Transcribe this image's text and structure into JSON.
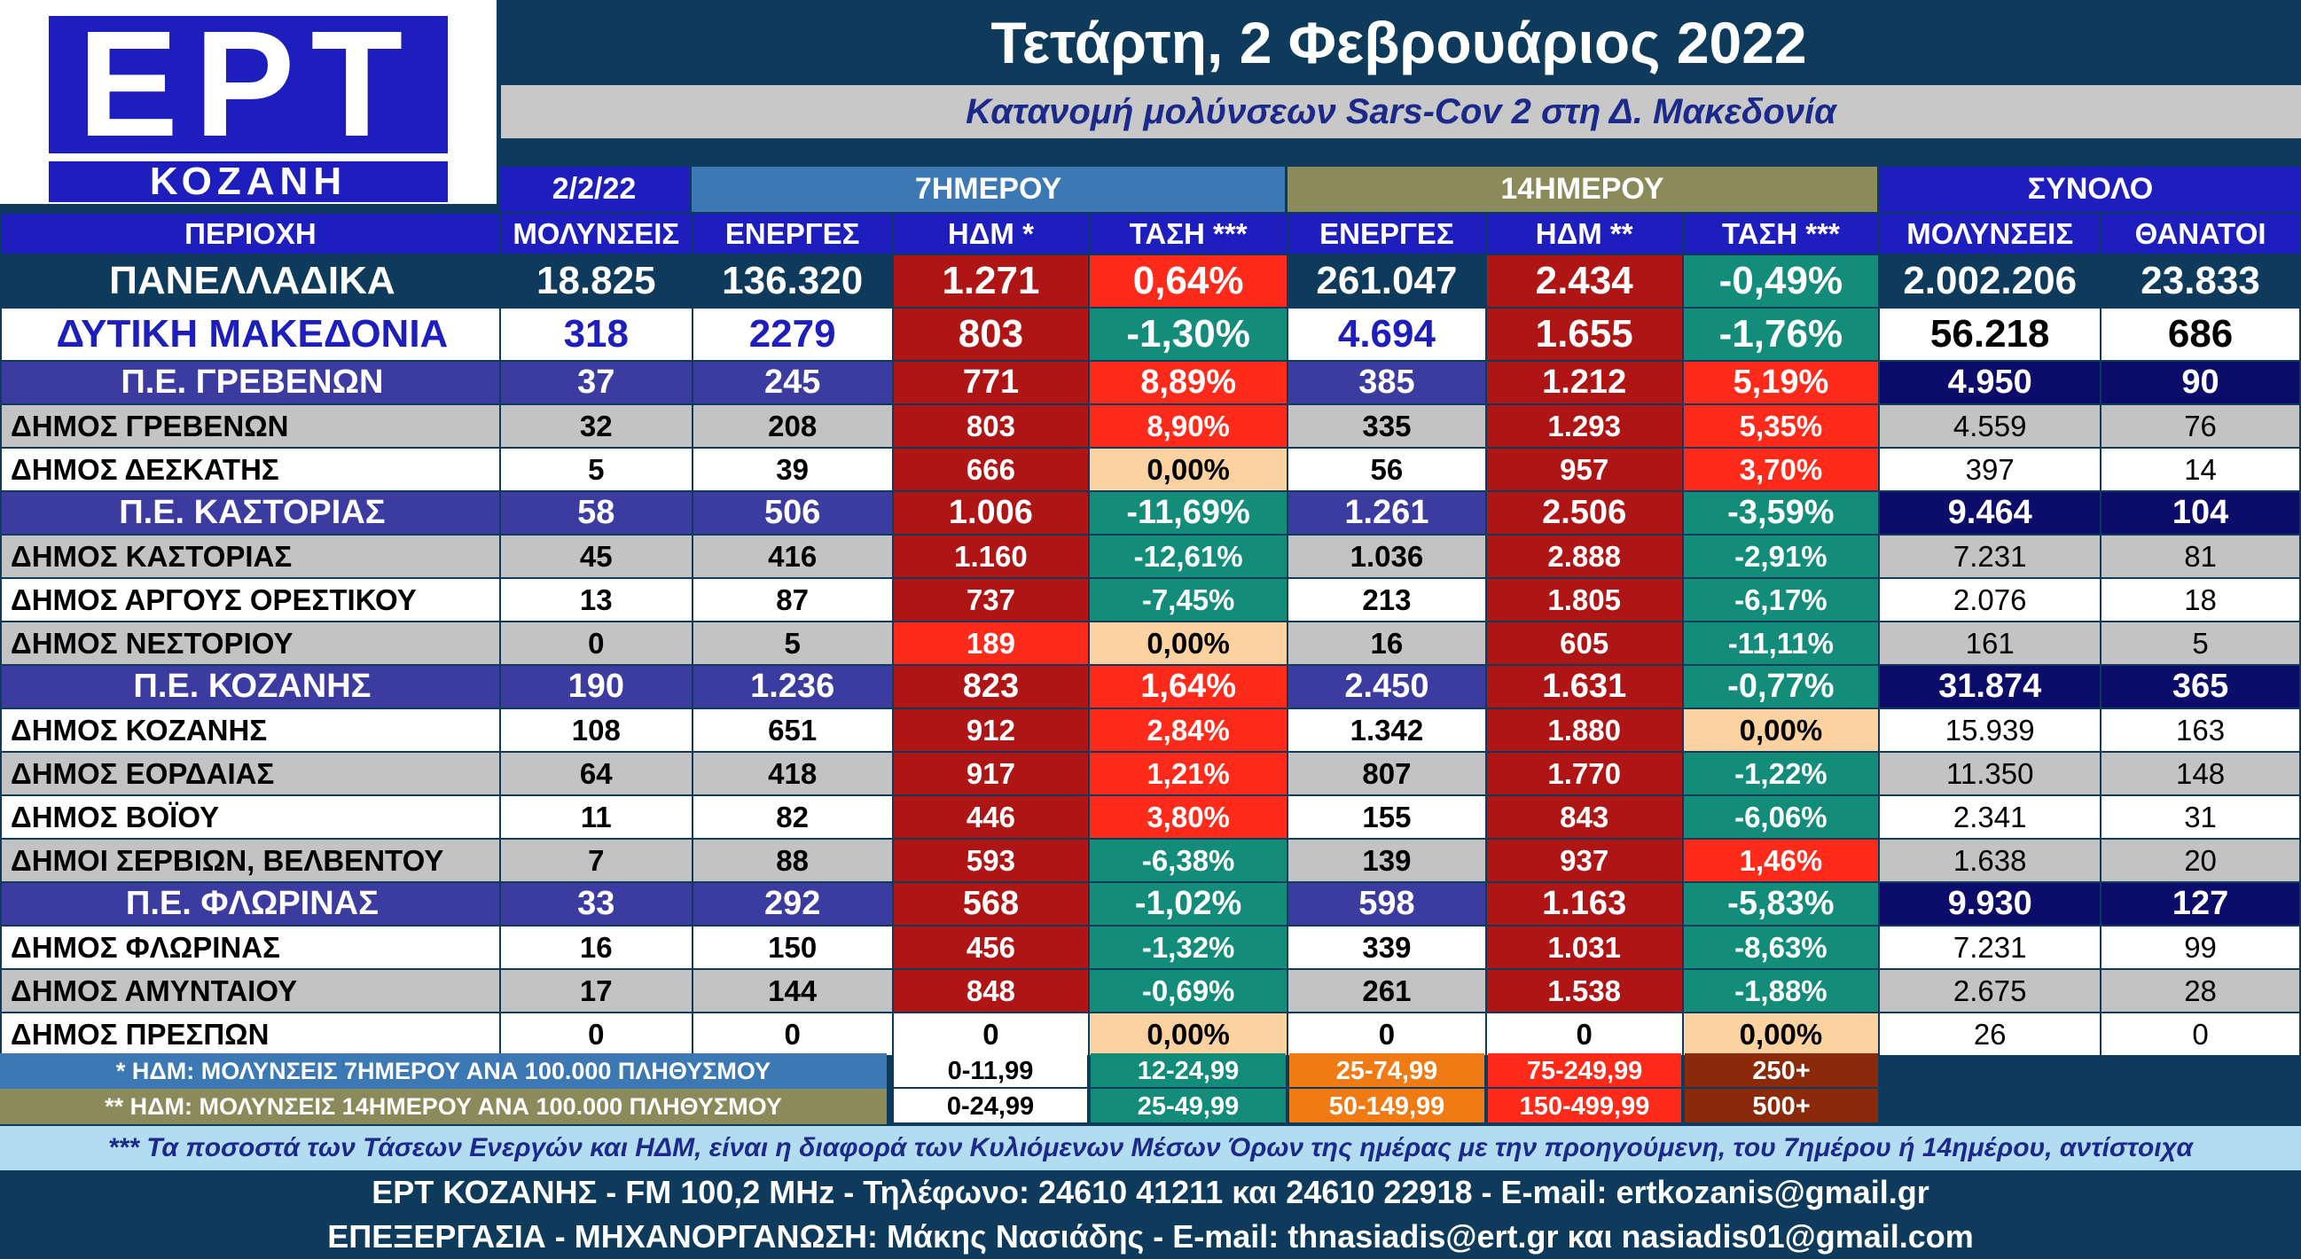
{
  "logo": {
    "brand": "ΕΡΤ",
    "city": "ΚΟΖΑΝΗ"
  },
  "title": {
    "date": "Τετάρτη, 2 Φεβρουάριος 2022",
    "subtitle": "Κατανομή μολύνσεων Sars-Cov 2 στη Δ. Μακεδονία"
  },
  "group_headers": {
    "day": "2/2/22",
    "week": "7ΗΜΕΡΟΥ",
    "fortnight": "14ΗΜΕΡΟΥ",
    "total": "ΣΥΝΟΛΟ"
  },
  "columns": [
    "ΠΕΡΙΟΧΗ",
    "ΜΟΛΥΝΣΕΙΣ",
    "ΕΝΕΡΓΕΣ",
    "ΗΔΜ *",
    "ΤΑΣΗ ***",
    "ΕΝΕΡΓΕΣ",
    "ΗΔΜ **",
    "ΤΑΣΗ ***",
    "ΜΟΛΥΝΣΕΙΣ",
    "ΘΑΝΑΤΟΙ"
  ],
  "rows": [
    {
      "type": "national",
      "cells": [
        "ΠΑΝΕΛΛΑΔΙΚΑ",
        "18.825",
        "136.320",
        "1.271",
        "0,64%",
        "261.047",
        "2.434",
        "-0,49%",
        "2.002.206",
        "23.833"
      ],
      "colors": {
        "hdm7": "#b01515",
        "trend7": "#ff2a1a",
        "hdm14": "#b01515",
        "trend14": "#138c7a"
      }
    },
    {
      "type": "region",
      "cells": [
        "ΔΥΤΙΚΗ ΜΑΚΕΔΟΝΙΑ",
        "318",
        "2279",
        "803",
        "-1,30%",
        "4.694",
        "1.655",
        "-1,76%",
        "56.218",
        "686"
      ],
      "colors": {
        "hdm7": "#b01515",
        "trend7": "#138c7a",
        "hdm14": "#b01515",
        "trend14": "#138c7a"
      }
    },
    {
      "type": "pe",
      "cells": [
        "Π.Ε. ΓΡΕΒΕΝΩΝ",
        "37",
        "245",
        "771",
        "8,89%",
        "385",
        "1.212",
        "5,19%",
        "4.950",
        "90"
      ],
      "colors": {
        "hdm7": "#b01515",
        "trend7": "#ff2a1a",
        "hdm14": "#b01515",
        "trend14": "#ff2a1a"
      }
    },
    {
      "type": "dim",
      "cells": [
        "ΔΗΜΟΣ ΓΡΕΒΕΝΩΝ",
        "32",
        "208",
        "803",
        "8,90%",
        "335",
        "1.293",
        "5,35%",
        "4.559",
        "76"
      ],
      "colors": {
        "hdm7": "#b01515",
        "trend7": "#ff2a1a",
        "hdm14": "#b01515",
        "trend14": "#ff2a1a"
      }
    },
    {
      "type": "dim",
      "cells": [
        "ΔΗΜΟΣ ΔΕΣΚΑΤΗΣ",
        "5",
        "39",
        "666",
        "0,00%",
        "56",
        "957",
        "3,70%",
        "397",
        "14"
      ],
      "colors": {
        "hdm7": "#b01515",
        "trend7": "#fbd2a0",
        "hdm14": "#b01515",
        "trend14": "#ff2a1a"
      }
    },
    {
      "type": "pe",
      "cells": [
        "Π.Ε. ΚΑΣΤΟΡΙΑΣ",
        "58",
        "506",
        "1.006",
        "-11,69%",
        "1.261",
        "2.506",
        "-3,59%",
        "9.464",
        "104"
      ],
      "colors": {
        "hdm7": "#b01515",
        "trend7": "#138c7a",
        "hdm14": "#b01515",
        "trend14": "#138c7a"
      }
    },
    {
      "type": "dim",
      "cells": [
        "ΔΗΜΟΣ ΚΑΣΤΟΡΙΑΣ",
        "45",
        "416",
        "1.160",
        "-12,61%",
        "1.036",
        "2.888",
        "-2,91%",
        "7.231",
        "81"
      ],
      "colors": {
        "hdm7": "#b01515",
        "trend7": "#138c7a",
        "hdm14": "#b01515",
        "trend14": "#138c7a"
      }
    },
    {
      "type": "dim",
      "cells": [
        "ΔΗΜΟΣ ΑΡΓΟΥΣ ΟΡΕΣΤΙΚΟΥ",
        "13",
        "87",
        "737",
        "-7,45%",
        "213",
        "1.805",
        "-6,17%",
        "2.076",
        "18"
      ],
      "colors": {
        "hdm7": "#b01515",
        "trend7": "#138c7a",
        "hdm14": "#b01515",
        "trend14": "#138c7a"
      }
    },
    {
      "type": "dim",
      "cells": [
        "ΔΗΜΟΣ ΝΕΣΤΟΡΙΟΥ",
        "0",
        "5",
        "189",
        "0,00%",
        "16",
        "605",
        "-11,11%",
        "161",
        "5"
      ],
      "colors": {
        "hdm7": "#ff2a1a",
        "trend7": "#fbd2a0",
        "hdm14": "#b01515",
        "trend14": "#138c7a"
      }
    },
    {
      "type": "pe",
      "cells": [
        "Π.Ε. ΚΟΖΑΝΗΣ",
        "190",
        "1.236",
        "823",
        "1,64%",
        "2.450",
        "1.631",
        "-0,77%",
        "31.874",
        "365"
      ],
      "colors": {
        "hdm7": "#b01515",
        "trend7": "#ff2a1a",
        "hdm14": "#b01515",
        "trend14": "#138c7a"
      }
    },
    {
      "type": "dim",
      "cells": [
        "ΔΗΜΟΣ ΚΟΖΑΝΗΣ",
        "108",
        "651",
        "912",
        "2,84%",
        "1.342",
        "1.880",
        "0,00%",
        "15.939",
        "163"
      ],
      "colors": {
        "hdm7": "#b01515",
        "trend7": "#ff2a1a",
        "hdm14": "#b01515",
        "trend14": "#fbd2a0"
      }
    },
    {
      "type": "dim",
      "cells": [
        "ΔΗΜΟΣ ΕΟΡΔΑΙΑΣ",
        "64",
        "418",
        "917",
        "1,21%",
        "807",
        "1.770",
        "-1,22%",
        "11.350",
        "148"
      ],
      "colors": {
        "hdm7": "#b01515",
        "trend7": "#ff2a1a",
        "hdm14": "#b01515",
        "trend14": "#138c7a"
      }
    },
    {
      "type": "dim",
      "cells": [
        "ΔΗΜΟΣ ΒΟΪΟΥ",
        "11",
        "82",
        "446",
        "3,80%",
        "155",
        "843",
        "-6,06%",
        "2.341",
        "31"
      ],
      "colors": {
        "hdm7": "#b01515",
        "trend7": "#ff2a1a",
        "hdm14": "#b01515",
        "trend14": "#138c7a"
      }
    },
    {
      "type": "dim",
      "cells": [
        "ΔΗΜΟΙ ΣΕΡΒΙΩΝ, ΒΕΛΒΕΝΤΟΥ",
        "7",
        "88",
        "593",
        "-6,38%",
        "139",
        "937",
        "1,46%",
        "1.638",
        "20"
      ],
      "colors": {
        "hdm7": "#b01515",
        "trend7": "#138c7a",
        "hdm14": "#b01515",
        "trend14": "#ff2a1a"
      }
    },
    {
      "type": "pe",
      "cells": [
        "Π.Ε. ΦΛΩΡΙΝΑΣ",
        "33",
        "292",
        "568",
        "-1,02%",
        "598",
        "1.163",
        "-5,83%",
        "9.930",
        "127"
      ],
      "colors": {
        "hdm7": "#b01515",
        "trend7": "#138c7a",
        "hdm14": "#b01515",
        "trend14": "#138c7a"
      }
    },
    {
      "type": "dim",
      "cells": [
        "ΔΗΜΟΣ ΦΛΩΡΙΝΑΣ",
        "16",
        "150",
        "456",
        "-1,32%",
        "339",
        "1.031",
        "-8,63%",
        "7.231",
        "99"
      ],
      "colors": {
        "hdm7": "#b01515",
        "trend7": "#138c7a",
        "hdm14": "#b01515",
        "trend14": "#138c7a"
      }
    },
    {
      "type": "dim",
      "cells": [
        "ΔΗΜΟΣ ΑΜΥΝΤΑΙΟΥ",
        "17",
        "144",
        "848",
        "-0,69%",
        "261",
        "1.538",
        "-1,88%",
        "2.675",
        "28"
      ],
      "colors": {
        "hdm7": "#b01515",
        "trend7": "#138c7a",
        "hdm14": "#b01515",
        "trend14": "#138c7a"
      }
    },
    {
      "type": "dim",
      "cells": [
        "ΔΗΜΟΣ ΠΡΕΣΠΩΝ",
        "0",
        "0",
        "0",
        "0,00%",
        "0",
        "0",
        "0,00%",
        "26",
        "0"
      ],
      "colors": {
        "hdm7": "#ffffff",
        "trend7": "#fbd2a0",
        "hdm14": "#ffffff",
        "trend14": "#fbd2a0"
      }
    }
  ],
  "legend": [
    {
      "label": "* ΗΔΜ: ΜΟΛΥΝΣΕΙΣ 7ΗΜΕΡΟΥ ΑΝΑ 100.000 ΠΛΗΘΥΣΜΟΥ",
      "label_bg": "#3c78b4",
      "ranges": [
        "0-11,99",
        "12-24,99",
        "25-74,99",
        "75-249,99",
        "250+"
      ]
    },
    {
      "label": "** ΗΔΜ: ΜΟΛΥΝΣΕΙΣ 14ΗΜΕΡΟΥ ΑΝΑ 100.000 ΠΛΗΘΥΣΜΟΥ",
      "label_bg": "#8a8a5a",
      "ranges": [
        "0-24,99",
        "25-49,99",
        "50-149,99",
        "150-499,99",
        "500+"
      ]
    }
  ],
  "legend_colors": [
    "#ffffff",
    "#138c7a",
    "#f07a14",
    "#ff2a1a",
    "#8a2a0a"
  ],
  "note": "*** Τα ποσοστά των Τάσεων Ενεργών και ΗΔΜ, είναι η διαφορά των Κυλιόμενων Μέσων Όρων της ημέρας με την προηγούμενη, του 7ημέρου ή 14ημέρου, αντίστοιχα",
  "footer": {
    "line1": "ΕΡΤ ΚΟΖΑΝΗΣ - FM 100,2 MHz - Τηλέφωνο:  24610 41211 και 24610 22918 - E-mail: ertkozanis@gmail.gr",
    "line2": "ΕΠΕΞΕΡΓΑΣΙΑ  -  ΜΗΧΑΝΟΡΓΑΝΩΣΗ: Μάκης Νασιάδης  -   E-mail: thnasiadis@ert.gr και nasiadis01@gmail.com"
  },
  "colors": {
    "background": "#0e3b5c",
    "column_header": "#1e1ebe",
    "week_header": "#3c78b4",
    "fortnight_header": "#8a8a5a",
    "pe_row": "#3c3ca0",
    "pe_total": "#0c0c6a",
    "dim_grey": "#c3c3c3"
  }
}
